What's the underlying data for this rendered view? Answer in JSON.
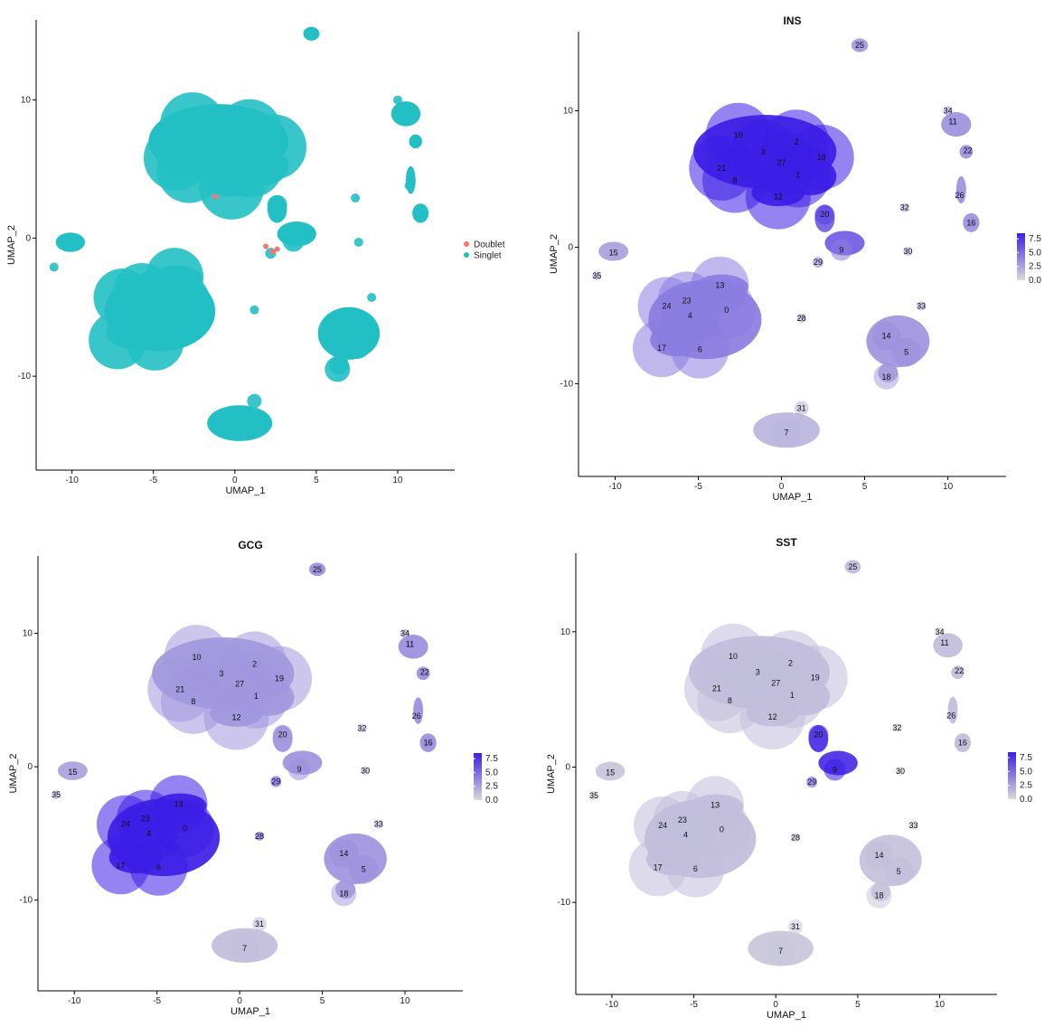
{
  "chart_data": [
    {
      "type": "scatter",
      "panel": "doublet",
      "title": "",
      "xlabel": "UMAP_1",
      "ylabel": "UMAP_2",
      "xlim": [
        -12.2,
        13.5
      ],
      "ylim": [
        -16.8,
        15.8
      ],
      "xticks": [
        "-10",
        "-5",
        "0",
        "5",
        "10"
      ],
      "xtick_values": [
        -10,
        -5,
        0,
        5,
        10
      ],
      "yticks": [
        "-10",
        "0",
        "10"
      ],
      "ytick_values": [
        -10,
        0,
        10
      ],
      "legend": {
        "placement": "right",
        "entries": [
          {
            "name": "Doublet",
            "color": "#F8766D"
          },
          {
            "name": "Singlet",
            "color": "#22C0C4"
          }
        ]
      },
      "clusters": [
        {
          "id": "25",
          "x": 4.7,
          "y": 14.8,
          "intensity": 0.35
        },
        {
          "id": "34",
          "x": 10.0,
          "y": 10.0,
          "intensity": 0.35
        },
        {
          "id": "11",
          "x": 10.3,
          "y": 9.2,
          "intensity": 0.4
        },
        {
          "id": "22",
          "x": 11.2,
          "y": 7.1,
          "intensity": 0.4
        },
        {
          "id": "26",
          "x": 10.7,
          "y": 3.8,
          "intensity": 0.35
        },
        {
          "id": "16",
          "x": 11.4,
          "y": 1.8,
          "intensity": 0.4
        },
        {
          "id": "10",
          "x": -2.6,
          "y": 8.2,
          "intensity": 1.0
        },
        {
          "id": "2",
          "x": 0.9,
          "y": 7.7,
          "intensity": 1.0
        },
        {
          "id": "3",
          "x": -1.1,
          "y": 7.0,
          "intensity": 1.0
        },
        {
          "id": "27",
          "x": 0.0,
          "y": 6.2,
          "intensity": 1.0
        },
        {
          "id": "19",
          "x": 2.4,
          "y": 6.6,
          "intensity": 1.0
        },
        {
          "id": "21",
          "x": -3.6,
          "y": 5.8,
          "intensity": 1.0
        },
        {
          "id": "1",
          "x": 1.0,
          "y": 5.3,
          "intensity": 1.0
        },
        {
          "id": "8",
          "x": -2.8,
          "y": 4.9,
          "intensity": 1.0
        },
        {
          "id": "12",
          "x": -0.2,
          "y": 3.7,
          "intensity": 1.0
        },
        {
          "id": "20",
          "x": 2.6,
          "y": 2.4,
          "intensity": 0.85
        },
        {
          "id": "9",
          "x": 3.6,
          "y": -0.2,
          "intensity": 0.5
        },
        {
          "id": "29",
          "x": 2.2,
          "y": -1.1,
          "intensity": 0.5
        },
        {
          "id": "32",
          "x": 7.4,
          "y": 2.9,
          "intensity": 0.3
        },
        {
          "id": "30",
          "x": 7.6,
          "y": -0.3,
          "intensity": 0.3
        },
        {
          "id": "15",
          "x": -10.1,
          "y": -0.4,
          "intensity": 0.3
        },
        {
          "id": "35",
          "x": -11.1,
          "y": -2.1,
          "intensity": 0.3
        },
        {
          "id": "13",
          "x": -3.7,
          "y": -2.8,
          "intensity": 0.5
        },
        {
          "id": "24",
          "x": -6.9,
          "y": -4.3,
          "intensity": 0.5
        },
        {
          "id": "23",
          "x": -5.7,
          "y": -3.9,
          "intensity": 0.5
        },
        {
          "id": "4",
          "x": -5.5,
          "y": -5.0,
          "intensity": 0.5
        },
        {
          "id": "0",
          "x": -3.3,
          "y": -4.6,
          "intensity": 0.5
        },
        {
          "id": "28",
          "x": 1.2,
          "y": -5.2,
          "intensity": 0.35
        },
        {
          "id": "17",
          "x": -7.2,
          "y": -7.4,
          "intensity": 0.5
        },
        {
          "id": "6",
          "x": -4.9,
          "y": -7.5,
          "intensity": 0.5
        },
        {
          "id": "33",
          "x": 8.4,
          "y": -4.3,
          "intensity": 0.3
        },
        {
          "id": "14",
          "x": 6.3,
          "y": -6.5,
          "intensity": 0.4
        },
        {
          "id": "5",
          "x": 7.5,
          "y": -7.7,
          "intensity": 0.4
        },
        {
          "id": "18",
          "x": 6.3,
          "y": -9.5,
          "intensity": 0.3
        },
        {
          "id": "31",
          "x": 1.2,
          "y": -11.8,
          "intensity": 0.2
        },
        {
          "id": "7",
          "x": 0.3,
          "y": -13.6,
          "intensity": 0.2
        }
      ]
    },
    {
      "type": "scatter",
      "panel": "feature",
      "title": "INS",
      "xlabel": "UMAP_1",
      "ylabel": "UMAP_2",
      "xlim": [
        -12.2,
        13.5
      ],
      "ylim": [
        -16.8,
        15.8
      ],
      "xticks": [
        "-10",
        "-5",
        "0",
        "5",
        "10"
      ],
      "xtick_values": [
        -10,
        -5,
        0,
        5,
        10
      ],
      "yticks": [
        "-10",
        "0",
        "10"
      ],
      "ytick_values": [
        -10,
        0,
        10
      ],
      "colorbar": {
        "ticks": [
          "7.5",
          "5.0",
          "2.5",
          "0.0"
        ],
        "values": [
          7.5,
          5.0,
          2.5,
          0.0
        ],
        "min": 0.0,
        "max": 8.5,
        "low_color": "#D9D9D9",
        "high_color": "#3C1EE6"
      },
      "expression": {
        "10": 1.0,
        "2": 1.0,
        "3": 1.0,
        "27": 1.0,
        "19": 1.0,
        "21": 1.0,
        "1": 1.0,
        "8": 1.0,
        "12": 1.0,
        "20": 0.85,
        "9": 0.5,
        "29": 0.5,
        "13": 0.5,
        "24": 0.5,
        "23": 0.5,
        "4": 0.5,
        "0": 0.5,
        "17": 0.5,
        "6": 0.5,
        "25": 0.35,
        "34": 0.35,
        "11": 0.4,
        "22": 0.4,
        "26": 0.35,
        "16": 0.4,
        "32": 0.3,
        "30": 0.3,
        "15": 0.3,
        "35": 0.3,
        "28": 0.35,
        "33": 0.3,
        "14": 0.4,
        "5": 0.4,
        "18": 0.3,
        "31": 0.2,
        "7": 0.2
      }
    },
    {
      "type": "scatter",
      "panel": "feature",
      "title": "GCG",
      "xlabel": "UMAP_1",
      "ylabel": "UMAP_2",
      "xlim": [
        -12.2,
        13.5
      ],
      "ylim": [
        -16.8,
        15.8
      ],
      "xticks": [
        "-10",
        "-5",
        "0",
        "5",
        "10"
      ],
      "xtick_values": [
        -10,
        -5,
        0,
        5,
        10
      ],
      "yticks": [
        "-10",
        "0",
        "10"
      ],
      "ytick_values": [
        -10,
        0,
        10
      ],
      "colorbar": {
        "ticks": [
          "7.5",
          "5.0",
          "2.5",
          "0.0"
        ],
        "values": [
          7.5,
          5.0,
          2.5,
          0.0
        ],
        "min": 0.0,
        "max": 8.5,
        "low_color": "#D9D9D9",
        "high_color": "#3C1EE6"
      },
      "expression": {
        "10": 0.35,
        "2": 0.35,
        "3": 0.35,
        "27": 0.35,
        "19": 0.35,
        "21": 0.35,
        "1": 0.35,
        "8": 0.35,
        "12": 0.35,
        "20": 0.35,
        "9": 0.4,
        "29": 0.9,
        "13": 1.0,
        "24": 1.0,
        "23": 1.0,
        "4": 1.0,
        "0": 1.0,
        "17": 1.0,
        "6": 1.0,
        "25": 0.4,
        "34": 0.35,
        "11": 0.4,
        "22": 0.4,
        "26": 0.35,
        "16": 0.45,
        "32": 0.2,
        "30": 0.2,
        "15": 0.3,
        "35": 0.3,
        "28": 0.8,
        "33": 0.25,
        "14": 0.4,
        "5": 0.4,
        "18": 0.3,
        "31": 0.15,
        "7": 0.15
      }
    },
    {
      "type": "scatter",
      "panel": "feature",
      "title": "SST",
      "xlabel": "UMAP_1",
      "ylabel": "UMAP_2",
      "xlim": [
        -12.2,
        13.5
      ],
      "ylim": [
        -16.8,
        15.8
      ],
      "xticks": [
        "-10",
        "-5",
        "0",
        "5",
        "10"
      ],
      "xtick_values": [
        -10,
        -5,
        0,
        5,
        10
      ],
      "yticks": [
        "-10",
        "0",
        "10"
      ],
      "ytick_values": [
        -10,
        0,
        10
      ],
      "colorbar": {
        "ticks": [
          "7.5",
          "5.0",
          "2.5",
          "0.0"
        ],
        "values": [
          7.5,
          5.0,
          2.5,
          0.0
        ],
        "min": 0.0,
        "max": 8.5,
        "low_color": "#D9D9D9",
        "high_color": "#3C1EE6"
      },
      "expression": {
        "10": 0.15,
        "2": 0.15,
        "3": 0.15,
        "27": 0.15,
        "19": 0.15,
        "21": 0.15,
        "1": 0.15,
        "8": 0.15,
        "12": 0.15,
        "20": 0.85,
        "9": 1.0,
        "29": 0.8,
        "13": 0.15,
        "24": 0.15,
        "23": 0.15,
        "4": 0.15,
        "0": 0.15,
        "17": 0.15,
        "6": 0.15,
        "25": 0.15,
        "34": 0.15,
        "11": 0.15,
        "22": 0.15,
        "26": 0.15,
        "16": 0.15,
        "32": 0.1,
        "30": 0.1,
        "15": 0.1,
        "35": 0.1,
        "28": 0.15,
        "33": 0.1,
        "14": 0.15,
        "5": 0.15,
        "18": 0.1,
        "31": 0.1,
        "7": 0.1
      }
    }
  ]
}
